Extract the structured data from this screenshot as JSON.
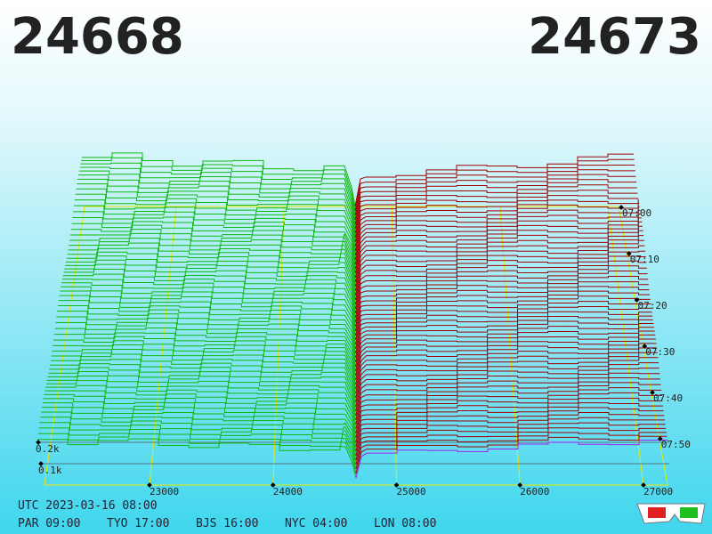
{
  "header": {
    "bid": 24668,
    "ask": 24673
  },
  "price_axis": {
    "ticks": [
      23000,
      24000,
      25000,
      26000,
      27000
    ]
  },
  "depth_axis": {
    "ticks": [
      "0.1k",
      "0.2k"
    ]
  },
  "time_axis": {
    "ticks": [
      "07:00",
      "07:10",
      "07:20",
      "07:30",
      "07:40",
      "07:50"
    ]
  },
  "footer": {
    "utc": "UTC 2023-03-16 08:00",
    "cities": [
      "PAR 09:00",
      "TYO 17:00",
      "BJS 16:00",
      "NYC 04:00",
      "LON 08:00"
    ]
  }
}
